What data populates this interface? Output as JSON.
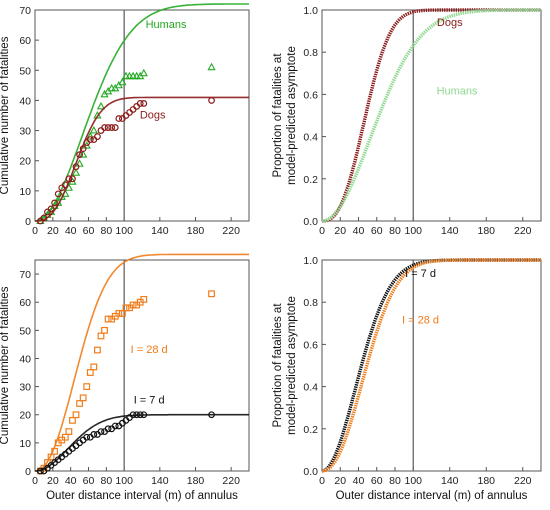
{
  "chart_data": [
    {
      "panel": "A",
      "type": "scatter",
      "ylabel": "Cumulative number of fatalities",
      "xlabel": "",
      "xlim": [
        0,
        240
      ],
      "ylim": [
        0,
        70
      ],
      "xticks": [
        0,
        20,
        40,
        60,
        80,
        100,
        140,
        180,
        220
      ],
      "yticks": [
        0,
        10,
        20,
        30,
        40,
        50,
        60,
        70
      ],
      "vline": 100,
      "series": [
        {
          "name": "Humans",
          "color": "#22aa22",
          "marker": "triangle",
          "x": [
            6,
            10,
            14,
            18,
            22,
            26,
            30,
            34,
            38,
            42,
            46,
            50,
            54,
            58,
            62,
            66,
            70,
            74,
            78,
            82,
            86,
            90,
            94,
            98,
            102,
            106,
            110,
            114,
            118,
            122,
            198
          ],
          "y": [
            0,
            1,
            2,
            3,
            5,
            6,
            8,
            9,
            11,
            13,
            16,
            19,
            22,
            25,
            28,
            30,
            35,
            38,
            42,
            43,
            44,
            44,
            45,
            46,
            48,
            48,
            48,
            48,
            48,
            49,
            51
          ],
          "fit": {
            "asymptote": 72,
            "scale": 75,
            "shape": 2.0
          }
        },
        {
          "name": "Dogs",
          "color": "#8b1a1a",
          "marker": "circle",
          "x": [
            6,
            10,
            14,
            18,
            22,
            26,
            30,
            34,
            38,
            42,
            46,
            50,
            54,
            58,
            62,
            66,
            70,
            74,
            78,
            82,
            86,
            90,
            94,
            98,
            102,
            106,
            110,
            114,
            118,
            122,
            198
          ],
          "y": [
            0,
            1,
            3,
            4,
            6,
            9,
            11,
            12,
            14,
            14,
            18,
            22,
            24,
            26,
            27,
            27,
            28,
            30,
            31,
            31,
            31,
            31,
            34,
            34,
            35,
            36,
            37,
            38,
            39,
            39,
            40
          ],
          "fit": {
            "asymptote": 41,
            "scale": 55,
            "shape": 2.6
          }
        }
      ],
      "labels": [
        {
          "text": "Humans",
          "series": "Humans",
          "x": 147,
          "y": 64
        },
        {
          "text": "Dogs",
          "series": "Dogs",
          "x": 132,
          "y": 34
        }
      ]
    },
    {
      "panel": "B",
      "type": "line",
      "ylabel": "Proportion of fatalities at model-predicted asymptote",
      "xlabel": "",
      "xlim": [
        0,
        240
      ],
      "ylim": [
        0,
        1.0
      ],
      "xticks": [
        0,
        20,
        40,
        60,
        80,
        100,
        140,
        180,
        220
      ],
      "yticks": [
        0.0,
        0.2,
        0.4,
        0.6,
        0.8,
        1.0
      ],
      "vline": 100,
      "series": [
        {
          "name": "Dogs",
          "color": "#8b1a1a",
          "fit": {
            "asymptote": 1.0,
            "scale": 55,
            "shape": 2.6
          }
        },
        {
          "name": "Humans",
          "color": "#8fd88f",
          "fit": {
            "asymptote": 1.0,
            "scale": 75,
            "shape": 2.0
          }
        }
      ],
      "labels": [
        {
          "text": "Dogs",
          "series": "Dogs",
          "x": 140,
          "y": 0.925
        },
        {
          "text": "Humans",
          "series": "Humans",
          "x": 148,
          "y": 0.6
        }
      ]
    },
    {
      "panel": "C",
      "type": "scatter",
      "ylabel": "Cumulative number of fatalities",
      "xlabel": "Outer distance interval (m) of annulus",
      "xlim": [
        0,
        240
      ],
      "ylim": [
        0,
        75
      ],
      "xticks": [
        0,
        20,
        40,
        60,
        80,
        100,
        140,
        180,
        220
      ],
      "yticks": [
        0,
        10,
        20,
        30,
        40,
        50,
        60,
        70
      ],
      "vline": 100,
      "series": [
        {
          "name": "I = 28 d",
          "color": "#f07c1a",
          "marker": "square",
          "x": [
            6,
            10,
            14,
            18,
            22,
            26,
            30,
            34,
            38,
            42,
            46,
            50,
            54,
            58,
            62,
            66,
            70,
            74,
            78,
            82,
            86,
            90,
            94,
            98,
            102,
            106,
            110,
            114,
            118,
            122,
            198
          ],
          "y": [
            0,
            1,
            3,
            5,
            7,
            10,
            11,
            12,
            14,
            18,
            20,
            24,
            26,
            30,
            35,
            37,
            43,
            48,
            50,
            54,
            54,
            55,
            56,
            56,
            58,
            58,
            59,
            59,
            60,
            61,
            63
          ],
          "fit": {
            "asymptote": 77,
            "scale": 58,
            "shape": 2.2
          }
        },
        {
          "name": "I = 7 d",
          "color": "#111111",
          "marker": "circle",
          "x": [
            6,
            10,
            14,
            18,
            22,
            26,
            30,
            34,
            38,
            42,
            46,
            50,
            54,
            58,
            62,
            66,
            70,
            74,
            78,
            82,
            86,
            90,
            94,
            98,
            102,
            106,
            110,
            114,
            118,
            122,
            198
          ],
          "y": [
            0,
            0,
            1,
            2,
            3,
            4,
            5,
            6,
            7,
            8,
            9,
            10,
            11,
            12,
            12,
            13,
            13,
            14,
            14,
            15,
            15,
            16,
            16,
            17,
            18,
            19,
            20,
            20,
            20,
            20,
            20
          ],
          "fit": {
            "asymptote": 20,
            "scale": 52,
            "shape": 2.0
          }
        }
      ],
      "labels": [
        {
          "text": "I = 28 d",
          "series": "I = 28 d",
          "x": 128,
          "y": 42
        },
        {
          "text": "I = 7 d",
          "series": "I = 7 d",
          "x": 128,
          "y": 24
        }
      ]
    },
    {
      "panel": "D",
      "type": "line",
      "ylabel": "Proportion of fatalities at model-predicted asymptote",
      "xlabel": "Outer distance interval (m) of annulus",
      "xlim": [
        0,
        240
      ],
      "ylim": [
        0,
        1.0
      ],
      "xticks": [
        0,
        20,
        40,
        60,
        80,
        100,
        140,
        180,
        220
      ],
      "yticks": [
        0.0,
        0.2,
        0.4,
        0.6,
        0.8,
        1.0
      ],
      "vline": 100,
      "series": [
        {
          "name": "I = 7 d",
          "color": "#111111",
          "fit": {
            "asymptote": 1.0,
            "scale": 52,
            "shape": 2.0
          }
        },
        {
          "name": "I = 28 d",
          "color": "#f07c1a",
          "fit": {
            "asymptote": 1.0,
            "scale": 58,
            "shape": 2.2
          }
        }
      ],
      "labels": [
        {
          "text": "I = 7 d",
          "series": "I = 7 d",
          "x": 108,
          "y": 0.92
        },
        {
          "text": "I = 28 d",
          "series": "I = 28 d",
          "x": 108,
          "y": 0.7
        }
      ]
    }
  ]
}
